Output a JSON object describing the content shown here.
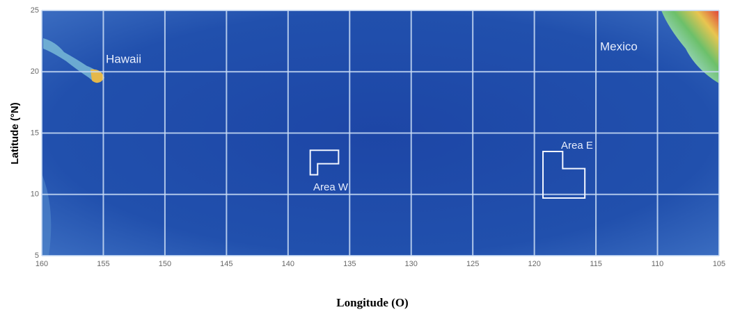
{
  "map": {
    "type": "map",
    "xlabel": "Longitude (O)",
    "ylabel": "Latitude (°N)",
    "xlim": [
      160,
      105
    ],
    "ylim": [
      5,
      25
    ],
    "xticks": [
      160,
      155,
      150,
      145,
      140,
      135,
      130,
      125,
      120,
      115,
      110,
      105
    ],
    "yticks": [
      5,
      10,
      15,
      20,
      25
    ],
    "grid": true,
    "grid_color": "#c9dcf5",
    "places": [
      {
        "label": "Hawaii"
      },
      {
        "label": "Mexico"
      }
    ],
    "areas": [
      {
        "label": "Area W",
        "lon": [
          138.2,
          135.9,
          135.9,
          137.6,
          137.6,
          138.2
        ],
        "lat": [
          13.6,
          13.6,
          12.5,
          12.5,
          11.6,
          11.6
        ]
      },
      {
        "label": "Area E",
        "lon": [
          119.3,
          117.7,
          117.7,
          115.9,
          115.9,
          119.3
        ],
        "lat": [
          13.5,
          13.5,
          12.1,
          12.1,
          9.7,
          9.7
        ]
      }
    ]
  }
}
